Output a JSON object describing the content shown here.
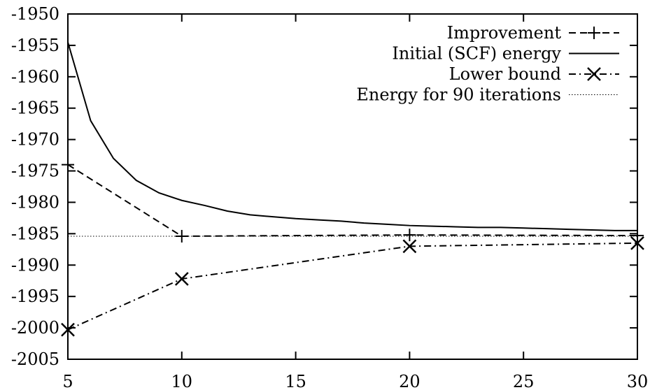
{
  "chart_data": {
    "type": "line",
    "title": "",
    "xlabel": "",
    "ylabel": "",
    "xlim": [
      5,
      30
    ],
    "ylim": [
      -2005,
      -1950
    ],
    "x_ticks": [
      5,
      10,
      15,
      20,
      25,
      30
    ],
    "y_ticks": [
      -1950,
      -1955,
      -1960,
      -1965,
      -1970,
      -1975,
      -1980,
      -1985,
      -1990,
      -1995,
      -2000,
      -2005
    ],
    "grid": false,
    "legend_position": "top-right",
    "series": [
      {
        "name": "Improvement",
        "style": "dashed",
        "marker": "plus",
        "color": "#000000",
        "x": [
          5,
          10,
          20,
          30
        ],
        "y": [
          -1974.0,
          -1985.4,
          -1985.2,
          -1985.3
        ]
      },
      {
        "name": "Initial (SCF) energy",
        "style": "solid",
        "marker": "none",
        "color": "#000000",
        "x": [
          5,
          6,
          7,
          8,
          9,
          10,
          11,
          12,
          13,
          14,
          15,
          16,
          17,
          18,
          19,
          20,
          21,
          22,
          23,
          24,
          25,
          26,
          27,
          28,
          29,
          30
        ],
        "y": [
          -1954.5,
          -1967.0,
          -1973.0,
          -1976.5,
          -1978.5,
          -1979.7,
          -1980.5,
          -1981.4,
          -1982.0,
          -1982.3,
          -1982.6,
          -1982.8,
          -1983.0,
          -1983.3,
          -1983.5,
          -1983.7,
          -1983.8,
          -1983.9,
          -1984.0,
          -1984.0,
          -1984.1,
          -1984.2,
          -1984.3,
          -1984.4,
          -1984.5,
          -1984.5
        ]
      },
      {
        "name": "Lower bound",
        "style": "dash-dot",
        "marker": "cross",
        "color": "#000000",
        "x": [
          5,
          10,
          20,
          30
        ],
        "y": [
          -2000.3,
          -1992.2,
          -1987.0,
          -1986.5
        ]
      },
      {
        "name": "Energy for 90 iterations",
        "style": "dotted",
        "marker": "none",
        "color": "#000000",
        "x": [
          5,
          30
        ],
        "y": [
          -1985.4,
          -1985.4
        ]
      }
    ]
  }
}
